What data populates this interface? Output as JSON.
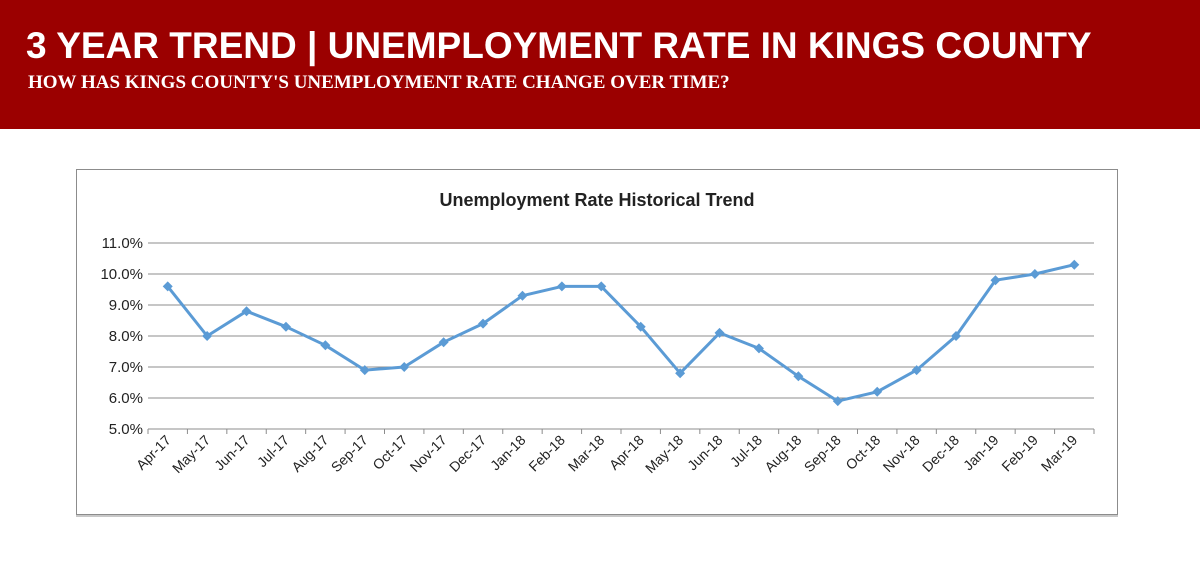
{
  "banner": {
    "title": "3 YEAR TREND | UNEMPLOYMENT RATE IN KINGS COUNTY",
    "subtitle": "HOW HAS KINGS COUNTY'S UNEMPLOYMENT RATE CHANGE OVER TIME?",
    "background_color": "#9b0000"
  },
  "chart_data": {
    "type": "line",
    "title": "Unemployment Rate Historical Trend",
    "xlabel": "",
    "ylabel": "",
    "categories": [
      "Apr-17",
      "May-17",
      "Jun-17",
      "Jul-17",
      "Aug-17",
      "Sep-17",
      "Oct-17",
      "Nov-17",
      "Dec-17",
      "Jan-18",
      "Feb-18",
      "Mar-18",
      "Apr-18",
      "May-18",
      "Jun-18",
      "Jul-18",
      "Aug-18",
      "Sep-18",
      "Oct-18",
      "Nov-18",
      "Dec-18",
      "Jan-19",
      "Feb-19",
      "Mar-19"
    ],
    "series": [
      {
        "values": [
          9.6,
          8.0,
          8.8,
          8.3,
          7.7,
          6.9,
          7.0,
          7.8,
          8.4,
          9.3,
          9.6,
          9.6,
          8.3,
          6.8,
          8.1,
          7.6,
          6.7,
          5.9,
          6.2,
          6.9,
          8.0,
          9.8,
          10.0,
          10.3
        ],
        "color": "#5b9bd5"
      }
    ],
    "ylim": [
      5.0,
      11.0
    ],
    "yticks": [
      "5.0%",
      "6.0%",
      "7.0%",
      "8.0%",
      "9.0%",
      "10.0%",
      "11.0%"
    ],
    "grid": true,
    "legend": "none",
    "markers": "diamond"
  }
}
